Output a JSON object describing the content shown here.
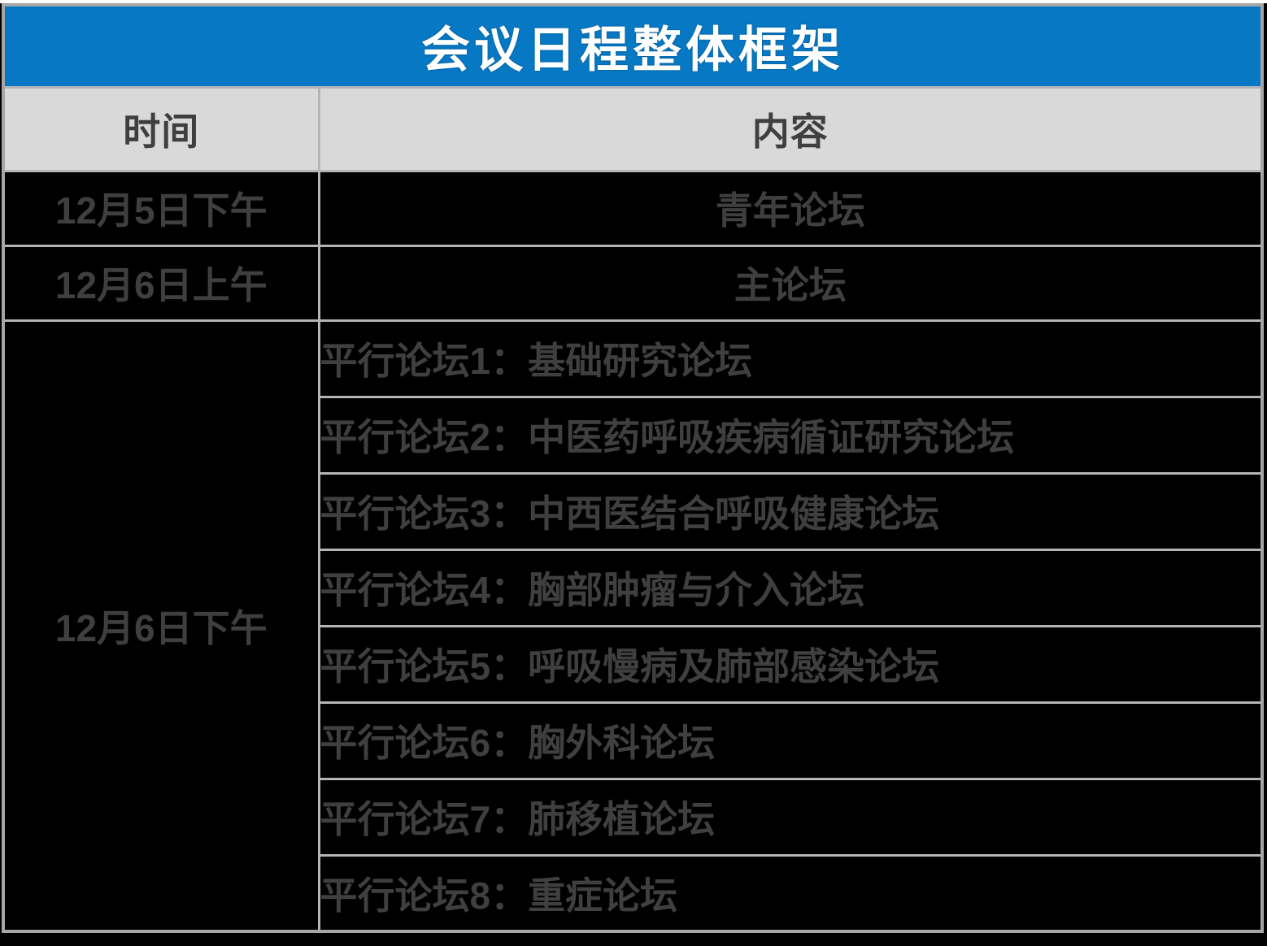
{
  "title": {
    "text": "会议日程整体框架"
  },
  "columns": {
    "time": "时间",
    "content": "内容"
  },
  "schedule": {
    "rows": [
      {
        "time": "12月5日下午",
        "content": "青年论坛"
      },
      {
        "time": "12月6日上午",
        "content": "主论坛"
      }
    ],
    "afternoon": {
      "time": "12月6日下午",
      "forums": [
        "平行论坛1：基础研究论坛",
        "平行论坛2：中医药呼吸疾病循证研究论坛",
        "平行论坛3：中西医结合呼吸健康论坛",
        "平行论坛4：胸部肿瘤与介入论坛",
        "平行论坛5：呼吸慢病及肺部感染论坛",
        "平行论坛6：胸外科论坛",
        "平行论坛7：肺移植论坛",
        "平行论坛8：重症论坛"
      ]
    }
  },
  "colors": {
    "accent_blue": "#0778C4",
    "title_text": "#FFFFFF",
    "header_bg": "#D9D9D9",
    "header_text": "#3F3F3F",
    "body_bg": "#000000",
    "body_text": "#3F3F3F",
    "grid_line": "#B5B5B5",
    "outer_border": "#A6A6A6",
    "page_bg": "#000000",
    "top_strip": "#FFFFFF"
  }
}
